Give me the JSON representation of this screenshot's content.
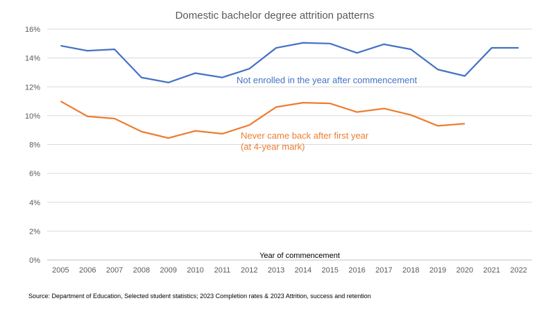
{
  "chart_data": {
    "type": "line",
    "title": "Domestic bachelor degree attrition patterns",
    "xlabel": "Year of commencement",
    "ylabel": "",
    "ylim": [
      0,
      16
    ],
    "ytick_values": [
      0,
      2,
      4,
      6,
      8,
      10,
      12,
      14,
      16
    ],
    "ytick_labels": [
      "0%",
      "2%",
      "4%",
      "6%",
      "8%",
      "10%",
      "12%",
      "14%",
      "16%"
    ],
    "grid": true,
    "categories": [
      "2005",
      "2006",
      "2007",
      "2008",
      "2009",
      "2010",
      "2011",
      "2012",
      "2013",
      "2014",
      "2015",
      "2016",
      "2017",
      "2018",
      "2019",
      "2020",
      "2021",
      "2022"
    ],
    "series": [
      {
        "name": "Not enrolled in the year after commencement",
        "color": "#4472C4",
        "values": [
          14.85,
          14.5,
          14.6,
          12.65,
          12.3,
          12.95,
          12.65,
          13.25,
          14.7,
          15.05,
          15.0,
          14.35,
          14.95,
          14.6,
          13.2,
          12.75,
          14.7,
          14.7
        ]
      },
      {
        "name": "Never came back after first year (at 4-year mark)",
        "color": "#ED7D31",
        "values": [
          11.0,
          9.95,
          9.8,
          8.9,
          8.45,
          8.95,
          8.75,
          9.35,
          10.6,
          10.9,
          10.85,
          10.25,
          10.5,
          10.05,
          9.3,
          9.45,
          null,
          null
        ]
      }
    ],
    "annotations": [
      {
        "id": "blue",
        "lines": [
          "Not enrolled in the year after commencement"
        ],
        "color": "#4472C4"
      },
      {
        "id": "orange",
        "lines": [
          "Never came back after first year",
          "(at 4-year mark)"
        ],
        "color": "#ED7D31"
      }
    ],
    "source": "Source: Department of Education, Selected student statistics; 2023 Completion rates & 2023 Attrition, success and retention"
  }
}
